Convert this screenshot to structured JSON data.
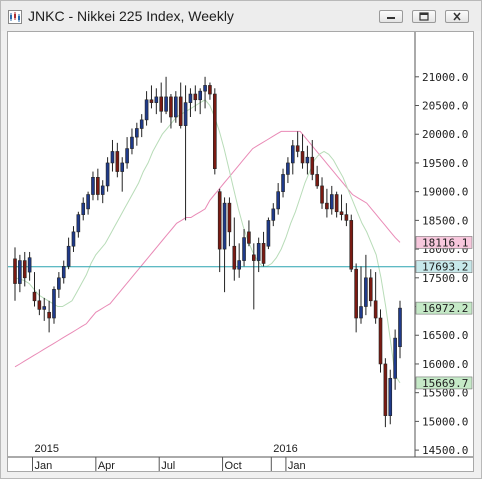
{
  "window": {
    "title": "JNKC - Nikkei 225 Index, Weekly",
    "minimize_icon": "minimize-icon",
    "maximize_icon": "maximize-icon",
    "close_icon": "close-icon"
  },
  "chart_data": {
    "type": "candlestick",
    "title": "JNKC - Nikkei 225 Index, Weekly",
    "y_ticks": [
      "21000.0",
      "20500.0",
      "20000.0",
      "19500.0",
      "19000.0",
      "18500.0",
      "18000.0",
      "17500.0",
      "17000.0",
      "16500.0",
      "16000.0",
      "15500.0",
      "15000.0",
      "14500.0"
    ],
    "x_year_labels": [
      {
        "label": "2015",
        "week": 4
      },
      {
        "label": "2016",
        "week": 53
      }
    ],
    "x_month_labels": [
      {
        "label": "Jan",
        "week": 4
      },
      {
        "label": "Apr",
        "week": 17
      },
      {
        "label": "Jul",
        "week": 30
      },
      {
        "label": "Oct",
        "week": 43
      },
      {
        "label": "Jan",
        "week": 56
      }
    ],
    "ylim": [
      14380,
      21780
    ],
    "price_boxes": [
      {
        "value": "18116.1",
        "price": 18116.1,
        "color": "#f7c7dc"
      },
      {
        "value": "17693.2",
        "price": 17693.2,
        "color": "#c7e8ea"
      },
      {
        "value": "16972.2",
        "price": 16972.2,
        "color": "#c5e9c7"
      },
      {
        "value": "15669.7",
        "price": 15669.7,
        "color": "#c5e9c7"
      }
    ],
    "horizontal_line": {
      "price": 17693.2,
      "color": "#2aa4b0"
    },
    "candles": [
      [
        0,
        17830,
        18030,
        17100,
        17400
      ],
      [
        1,
        17400,
        17900,
        17250,
        17800
      ],
      [
        2,
        17800,
        17950,
        17350,
        17500
      ],
      [
        3,
        17600,
        17950,
        17450,
        17850
      ],
      [
        4,
        17250,
        17600,
        17000,
        17100
      ],
      [
        5,
        17100,
        17300,
        16850,
        16950
      ],
      [
        6,
        16950,
        17150,
        16750,
        17000
      ],
      [
        7,
        16900,
        17100,
        16550,
        16800
      ],
      [
        8,
        16800,
        17350,
        16700,
        17300
      ],
      [
        9,
        17300,
        17600,
        17150,
        17500
      ],
      [
        10,
        17500,
        17800,
        17400,
        17700
      ],
      [
        11,
        17700,
        18200,
        17650,
        18050
      ],
      [
        12,
        18050,
        18400,
        17950,
        18300
      ],
      [
        13,
        18300,
        18650,
        18200,
        18600
      ],
      [
        14,
        18600,
        18900,
        18500,
        18800
      ],
      [
        15,
        18700,
        19000,
        18600,
        18950
      ],
      [
        16,
        18950,
        19350,
        18850,
        19250
      ],
      [
        17,
        19250,
        19400,
        18850,
        18950
      ],
      [
        18,
        18950,
        19200,
        18800,
        19100
      ],
      [
        19,
        19100,
        19600,
        19000,
        19500
      ],
      [
        20,
        19500,
        19900,
        19350,
        19700
      ],
      [
        21,
        19700,
        19850,
        19250,
        19350
      ],
      [
        22,
        19350,
        19600,
        19000,
        19500
      ],
      [
        23,
        19500,
        19950,
        19400,
        19750
      ],
      [
        24,
        19750,
        20100,
        19650,
        19950
      ],
      [
        25,
        19950,
        20200,
        19800,
        20100
      ],
      [
        26,
        20100,
        20350,
        19950,
        20250
      ],
      [
        27,
        20250,
        20750,
        20150,
        20600
      ],
      [
        28,
        20600,
        20850,
        20450,
        20550
      ],
      [
        29,
        20550,
        20800,
        20350,
        20650
      ],
      [
        30,
        20650,
        20900,
        20200,
        20400
      ],
      [
        31,
        20400,
        21000,
        20350,
        20650
      ],
      [
        32,
        20650,
        20700,
        20100,
        20300
      ],
      [
        33,
        20300,
        20750,
        20200,
        20650
      ],
      [
        34,
        20650,
        20900,
        20100,
        20150
      ],
      [
        35,
        20150,
        20850,
        18500,
        20550
      ],
      [
        36,
        20550,
        20800,
        20300,
        20700
      ],
      [
        37,
        20700,
        20850,
        20400,
        20600
      ],
      [
        38,
        20600,
        20800,
        20350,
        20750
      ],
      [
        39,
        20750,
        21000,
        20450,
        20850
      ],
      [
        40,
        20850,
        20900,
        20600,
        20700
      ],
      [
        41,
        20700,
        20800,
        19300,
        19400
      ],
      [
        42,
        19000,
        19050,
        17600,
        18000
      ],
      [
        43,
        18000,
        18900,
        17250,
        18800
      ],
      [
        44,
        18800,
        18900,
        18050,
        18300
      ],
      [
        45,
        18050,
        18550,
        17450,
        17650
      ],
      [
        46,
        17650,
        18100,
        17500,
        17800
      ],
      [
        47,
        17800,
        18350,
        17700,
        18200
      ],
      [
        48,
        18300,
        18500,
        18050,
        18100
      ],
      [
        49,
        17900,
        18100,
        16950,
        17800
      ],
      [
        50,
        17800,
        18200,
        17600,
        18100
      ],
      [
        51,
        18100,
        18300,
        17700,
        17750
      ],
      [
        52,
        18050,
        18550,
        18000,
        18500
      ],
      [
        53,
        18500,
        18800,
        18400,
        18700
      ],
      [
        54,
        18700,
        19150,
        18600,
        19000
      ],
      [
        55,
        19000,
        19400,
        18900,
        19300
      ],
      [
        56,
        19300,
        19600,
        19150,
        19500
      ],
      [
        57,
        19500,
        19900,
        19300,
        19800
      ],
      [
        58,
        19800,
        20050,
        19600,
        19700
      ],
      [
        59,
        19700,
        20000,
        19400,
        19500
      ],
      [
        60,
        19500,
        19800,
        19300,
        19600
      ],
      [
        61,
        19600,
        19900,
        19200,
        19300
      ],
      [
        62,
        19300,
        19450,
        19050,
        19100
      ],
      [
        63,
        19100,
        19250,
        18700,
        18800
      ],
      [
        64,
        18800,
        19050,
        18550,
        18700
      ],
      [
        65,
        18700,
        19100,
        18600,
        18950
      ],
      [
        66,
        18950,
        19000,
        18550,
        18650
      ],
      [
        67,
        18650,
        18950,
        18500,
        18600
      ],
      [
        68,
        18600,
        18800,
        18400,
        18500
      ],
      [
        69,
        18500,
        18600,
        17600,
        17650
      ],
      [
        70,
        17650,
        17750,
        16550,
        16800
      ],
      [
        71,
        16800,
        17700,
        16700,
        17000
      ],
      [
        72,
        17000,
        17900,
        16850,
        17500
      ],
      [
        73,
        17500,
        17650,
        17000,
        17100
      ],
      [
        74,
        17100,
        17600,
        16700,
        16800
      ],
      [
        75,
        16800,
        16950,
        15850,
        16000
      ],
      [
        76,
        16000,
        16100,
        14900,
        15100
      ],
      [
        77,
        15100,
        15900,
        14950,
        15750
      ],
      [
        78,
        15750,
        16600,
        15550,
        16450
      ],
      [
        79,
        16300,
        17100,
        16100,
        16972
      ]
    ],
    "series": [
      {
        "name": "",
        "color": "#e98ab6",
        "values": [
          15950,
          16000,
          16050,
          16100,
          16150,
          16200,
          16250,
          16300,
          16350,
          16400,
          16450,
          16500,
          16550,
          16600,
          16650,
          16700,
          16800,
          16900,
          16950,
          17000,
          17050,
          17150,
          17250,
          17350,
          17450,
          17550,
          17650,
          17750,
          17850,
          17950,
          18050,
          18150,
          18250,
          18350,
          18450,
          18500,
          18550,
          18550,
          18600,
          18650,
          18700,
          18850,
          18950,
          19050,
          19150,
          19250,
          19350,
          19450,
          19550,
          19650,
          19750,
          19800,
          19850,
          19900,
          19950,
          20000,
          20050,
          20050,
          20050,
          20050,
          20050,
          19950,
          19850,
          19750,
          19650,
          19550,
          19450,
          19350,
          19250,
          19150,
          19050,
          18950,
          18900,
          18850,
          18800,
          18700,
          18600,
          18500,
          18400,
          18300,
          18200,
          18116
        ]
      },
      {
        "name": "",
        "color": "#b8dcb8",
        "values": [
          17500,
          17480,
          17450,
          17400,
          17300,
          17200,
          17150,
          17100,
          17050,
          17000,
          17000,
          17050,
          17100,
          17250,
          17400,
          17550,
          17750,
          17900,
          18000,
          18100,
          18250,
          18400,
          18550,
          18700,
          18850,
          19000,
          19150,
          19350,
          19500,
          19700,
          19850,
          20000,
          20100,
          20200,
          20300,
          20350,
          20400,
          20450,
          20500,
          20550,
          20600,
          20500,
          20300,
          20050,
          19750,
          19400,
          19050,
          18700,
          18400,
          18150,
          17950,
          17800,
          17700,
          17700,
          17750,
          17850,
          18000,
          18200,
          18450,
          18650,
          18900,
          19150,
          19350,
          19550,
          19650,
          19700,
          19650,
          19550,
          19400,
          19250,
          19050,
          18850,
          18650,
          18450,
          18300,
          18100,
          17900,
          17500,
          17000,
          16400,
          15800,
          15669.7
        ]
      }
    ]
  }
}
